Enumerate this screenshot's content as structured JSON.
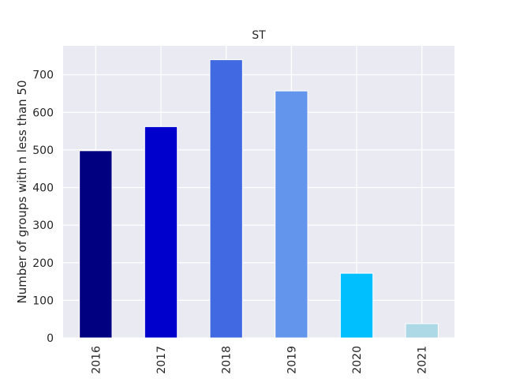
{
  "chart_data": {
    "type": "bar",
    "title": "ST",
    "xlabel": "",
    "ylabel": "Number of groups with n less than 50",
    "categories": [
      "2016",
      "2017",
      "2018",
      "2019",
      "2020",
      "2021"
    ],
    "values": [
      498,
      562,
      740,
      657,
      172,
      38
    ],
    "colors": [
      "#000080",
      "#0000CD",
      "#4169E1",
      "#6495ED",
      "#00BFFF",
      "#ADD8E6"
    ],
    "ylim": [
      0,
      777
    ],
    "yticks": [
      0,
      100,
      200,
      300,
      400,
      500,
      600,
      700
    ],
    "grid": true,
    "background": "#EAEAF2",
    "grid_color": "#FFFFFF",
    "legend": "none"
  }
}
